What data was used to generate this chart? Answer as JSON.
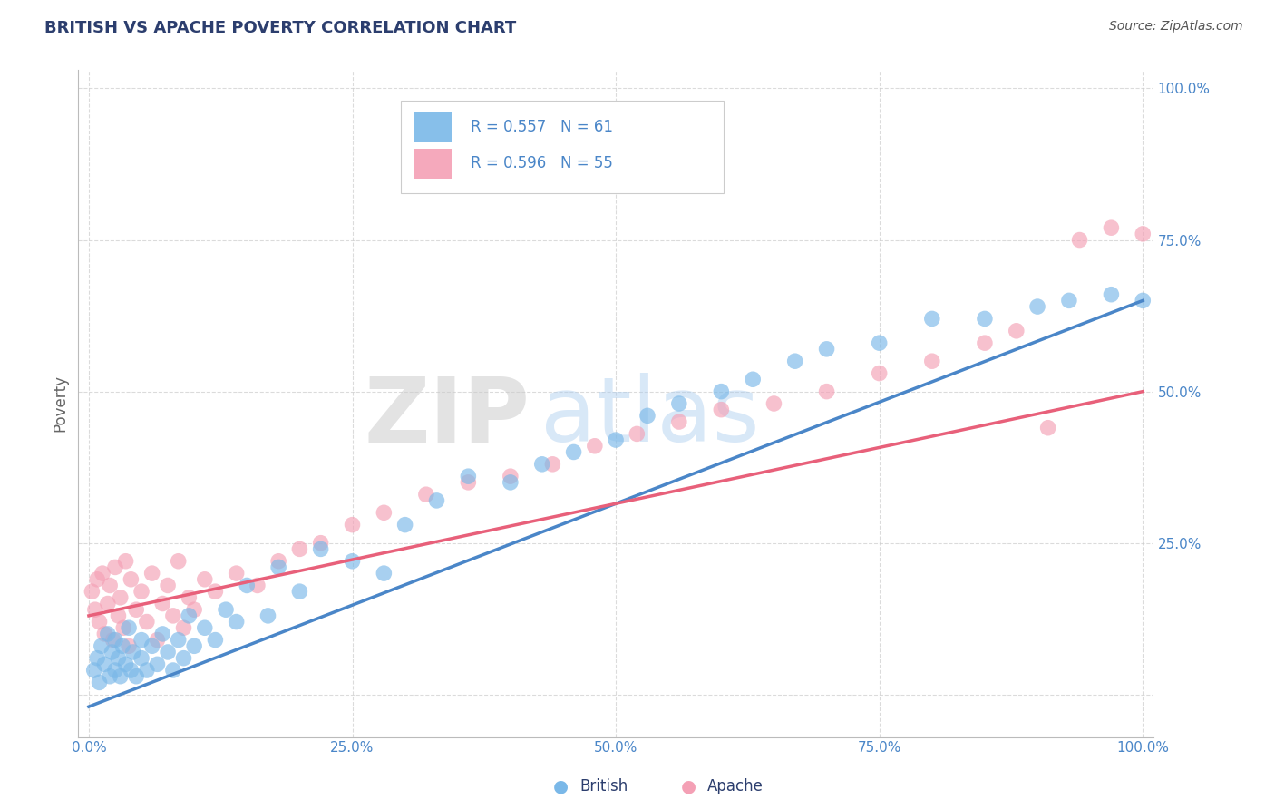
{
  "title": "BRITISH VS APACHE POVERTY CORRELATION CHART",
  "source": "Source: ZipAtlas.com",
  "ylabel": "Poverty",
  "watermark_zip": "ZIP",
  "watermark_atlas": "atlas",
  "british_R": 0.557,
  "british_N": 61,
  "apache_R": 0.596,
  "apache_N": 55,
  "british_color": "#7ab8e8",
  "apache_color": "#f4a0b5",
  "british_line_color": "#4a86c8",
  "apache_line_color": "#e8607a",
  "bg_color": "#ffffff",
  "grid_color": "#cccccc",
  "title_color": "#2c3e6e",
  "source_color": "#555555",
  "tick_label_color": "#4a86c8",
  "ylabel_color": "#666666",
  "british_scatter_x": [
    0.005,
    0.008,
    0.01,
    0.012,
    0.015,
    0.018,
    0.02,
    0.022,
    0.025,
    0.025,
    0.028,
    0.03,
    0.032,
    0.035,
    0.038,
    0.04,
    0.042,
    0.045,
    0.05,
    0.05,
    0.055,
    0.06,
    0.065,
    0.07,
    0.075,
    0.08,
    0.085,
    0.09,
    0.095,
    0.1,
    0.11,
    0.12,
    0.13,
    0.14,
    0.15,
    0.17,
    0.18,
    0.2,
    0.22,
    0.25,
    0.28,
    0.3,
    0.33,
    0.36,
    0.4,
    0.43,
    0.46,
    0.5,
    0.53,
    0.56,
    0.6,
    0.63,
    0.67,
    0.7,
    0.75,
    0.8,
    0.85,
    0.9,
    0.93,
    0.97,
    1.0
  ],
  "british_scatter_y": [
    0.04,
    0.06,
    0.02,
    0.08,
    0.05,
    0.1,
    0.03,
    0.07,
    0.04,
    0.09,
    0.06,
    0.03,
    0.08,
    0.05,
    0.11,
    0.04,
    0.07,
    0.03,
    0.06,
    0.09,
    0.04,
    0.08,
    0.05,
    0.1,
    0.07,
    0.04,
    0.09,
    0.06,
    0.13,
    0.08,
    0.11,
    0.09,
    0.14,
    0.12,
    0.18,
    0.13,
    0.21,
    0.17,
    0.24,
    0.22,
    0.2,
    0.28,
    0.32,
    0.36,
    0.35,
    0.38,
    0.4,
    0.42,
    0.46,
    0.48,
    0.5,
    0.52,
    0.55,
    0.57,
    0.58,
    0.62,
    0.62,
    0.64,
    0.65,
    0.66,
    0.65
  ],
  "apache_scatter_x": [
    0.003,
    0.006,
    0.008,
    0.01,
    0.013,
    0.015,
    0.018,
    0.02,
    0.023,
    0.025,
    0.028,
    0.03,
    0.033,
    0.035,
    0.038,
    0.04,
    0.045,
    0.05,
    0.055,
    0.06,
    0.065,
    0.07,
    0.075,
    0.08,
    0.085,
    0.09,
    0.095,
    0.1,
    0.11,
    0.12,
    0.14,
    0.16,
    0.18,
    0.2,
    0.22,
    0.25,
    0.28,
    0.32,
    0.36,
    0.4,
    0.44,
    0.48,
    0.52,
    0.56,
    0.6,
    0.65,
    0.7,
    0.75,
    0.8,
    0.85,
    0.88,
    0.91,
    0.94,
    0.97,
    1.0
  ],
  "apache_scatter_y": [
    0.17,
    0.14,
    0.19,
    0.12,
    0.2,
    0.1,
    0.15,
    0.18,
    0.09,
    0.21,
    0.13,
    0.16,
    0.11,
    0.22,
    0.08,
    0.19,
    0.14,
    0.17,
    0.12,
    0.2,
    0.09,
    0.15,
    0.18,
    0.13,
    0.22,
    0.11,
    0.16,
    0.14,
    0.19,
    0.17,
    0.2,
    0.18,
    0.22,
    0.24,
    0.25,
    0.28,
    0.3,
    0.33,
    0.35,
    0.36,
    0.38,
    0.41,
    0.43,
    0.45,
    0.47,
    0.48,
    0.5,
    0.53,
    0.55,
    0.58,
    0.6,
    0.44,
    0.75,
    0.77,
    0.76
  ],
  "british_line_x": [
    0.0,
    1.0
  ],
  "british_line_y": [
    -0.02,
    0.65
  ],
  "apache_line_x": [
    0.0,
    1.0
  ],
  "apache_line_y": [
    0.13,
    0.5
  ],
  "xlim": [
    -0.01,
    1.01
  ],
  "ylim": [
    -0.07,
    1.03
  ],
  "yticks": [
    0.0,
    0.25,
    0.5,
    0.75,
    1.0
  ],
  "xticks": [
    0.0,
    0.25,
    0.5,
    0.75,
    1.0
  ],
  "xticklabels": [
    "0.0%",
    "25.0%",
    "50.0%",
    "75.0%",
    "100.0%"
  ],
  "yticklabels": [
    "",
    "25.0%",
    "50.0%",
    "75.0%",
    "100.0%"
  ]
}
